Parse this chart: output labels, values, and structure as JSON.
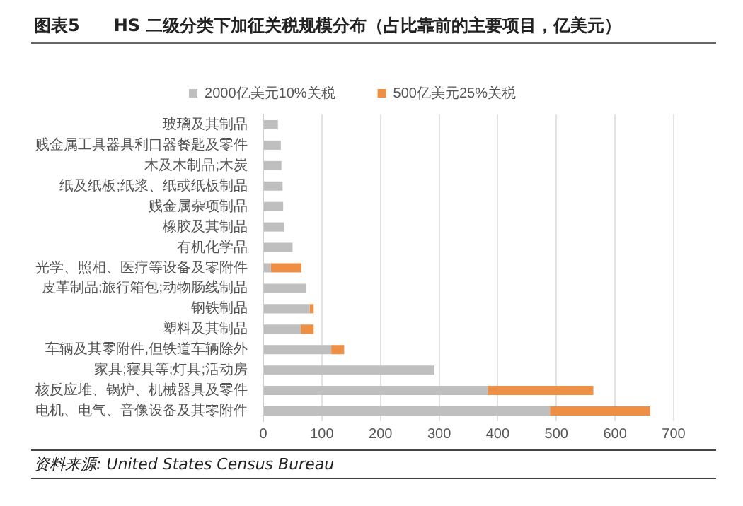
{
  "chart_data": {
    "type": "bar",
    "orientation": "horizontal",
    "stacked": true,
    "title": "图表5　　HS 二级分类下加征关税规模分布（占比靠前的主要项目，亿美元）",
    "categories": [
      "玻璃及其制品",
      "贱金属工具器具利口器餐匙及零件",
      "木及木制品;木炭",
      "纸及纸板;纸浆、纸或纸板制品",
      "贱金属杂项制品",
      "橡胶及其制品",
      "有机化学品",
      "光学、照相、医疗等设备及零附件",
      "皮革制品;旅行箱包;动物肠线制品",
      "钢铁制品",
      "塑料及其制品",
      "车辆及其零附件,但铁道车辆除外",
      "家具;寝具等;灯具;活动房",
      "核反应堆、锅炉、机械器具及零件",
      "电机、电气、音像设备及其零附件"
    ],
    "series": [
      {
        "name": "2000亿美元10%关税",
        "color": "#bfbfbf",
        "values": [
          25,
          30,
          31,
          33,
          34,
          35,
          50,
          13,
          73,
          79,
          64,
          116,
          292,
          383,
          489
        ]
      },
      {
        "name": "500亿美元25%关税",
        "color": "#ed8f45",
        "values": [
          0,
          0,
          0,
          0,
          0,
          0,
          0,
          52,
          0,
          7,
          22,
          22,
          0,
          180,
          171
        ]
      }
    ],
    "xlim": [
      0,
      700
    ],
    "xticks": [
      0,
      100,
      200,
      300,
      400,
      500,
      600,
      700
    ],
    "grid": "x",
    "legend": "top",
    "annotations": [
      "资料来源: United States Census Bureau"
    ]
  }
}
